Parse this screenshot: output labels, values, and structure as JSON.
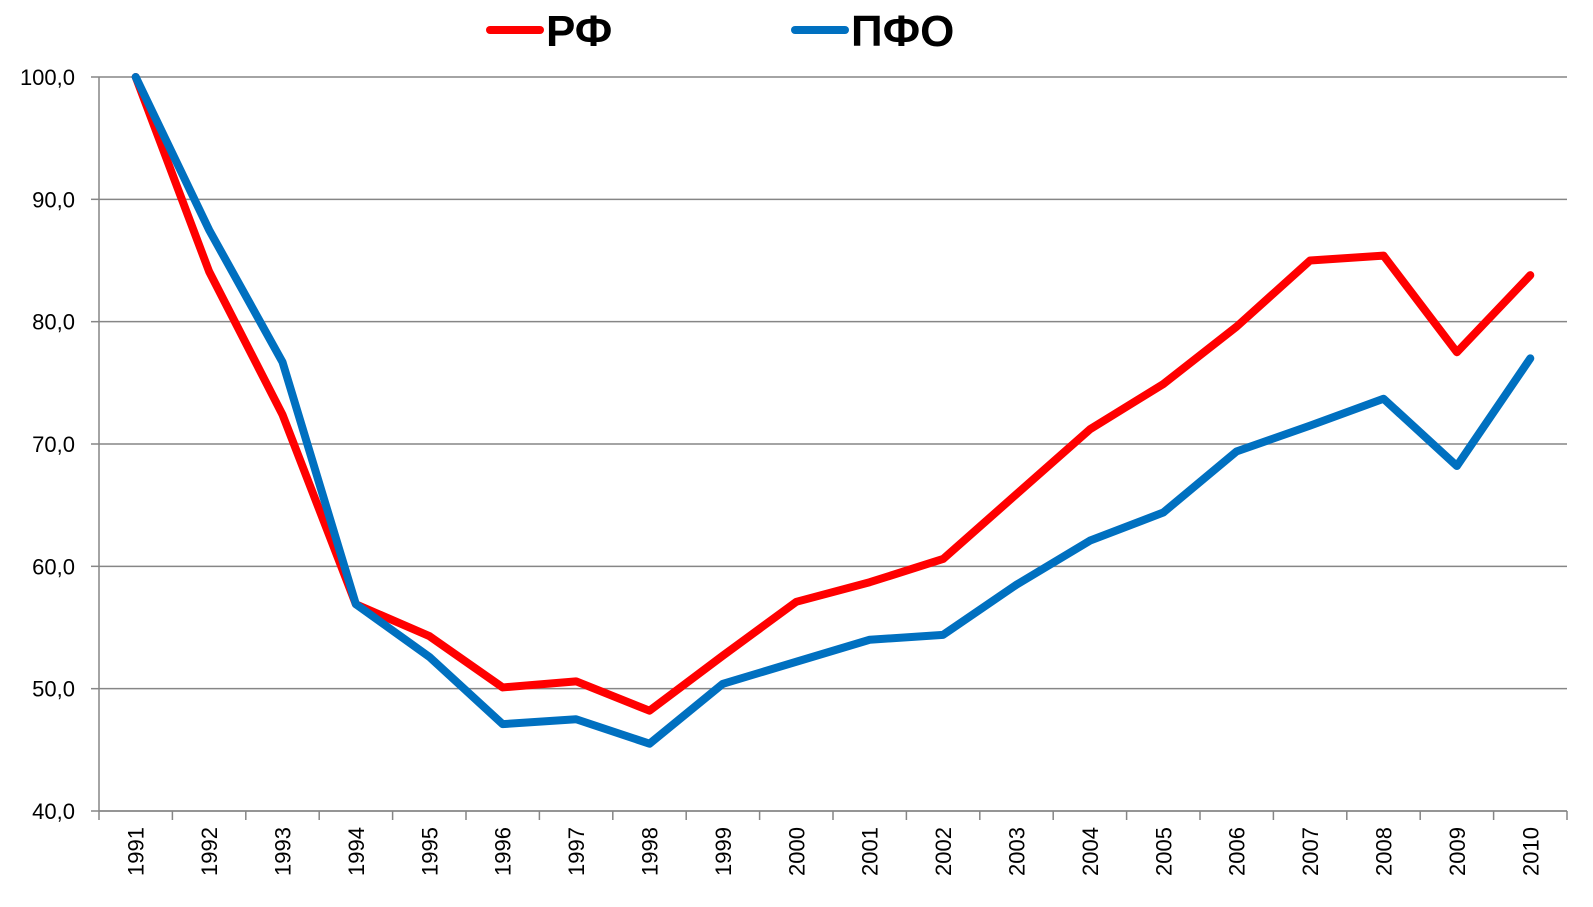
{
  "chart_data": {
    "type": "line",
    "categories": [
      "1991",
      "1992",
      "1993",
      "1994",
      "1995",
      "1996",
      "1997",
      "1998",
      "1999",
      "2000",
      "2001",
      "2002",
      "2003",
      "2004",
      "2005",
      "2006",
      "2007",
      "2008",
      "2009",
      "2010"
    ],
    "series": [
      {
        "name": "РФ",
        "color": "#ff0000",
        "values": [
          100,
          84.1,
          72.4,
          56.9,
          54.3,
          50.1,
          50.6,
          48.2,
          52.7,
          57.1,
          58.7,
          60.6,
          65.9,
          71.2,
          74.9,
          79.6,
          85.0,
          85.4,
          77.5,
          83.8
        ]
      },
      {
        "name": "ПФО",
        "color": "#0070c0",
        "values": [
          100,
          87.5,
          76.7,
          56.9,
          52.6,
          47.1,
          47.5,
          45.5,
          50.4,
          52.2,
          54.0,
          54.4,
          58.5,
          62.1,
          64.4,
          69.4,
          71.5,
          73.7,
          68.2,
          77.0
        ]
      }
    ],
    "ylim": [
      40,
      100
    ],
    "yticks": [
      {
        "value": 40,
        "label": "40,0"
      },
      {
        "value": 50,
        "label": "50,0"
      },
      {
        "value": 60,
        "label": "60,0"
      },
      {
        "value": 70,
        "label": "70,0"
      },
      {
        "value": 80,
        "label": "80,0"
      },
      {
        "value": 90,
        "label": "90,0"
      },
      {
        "value": 100,
        "label": "100,0"
      }
    ],
    "grid": true,
    "legend": "top"
  }
}
